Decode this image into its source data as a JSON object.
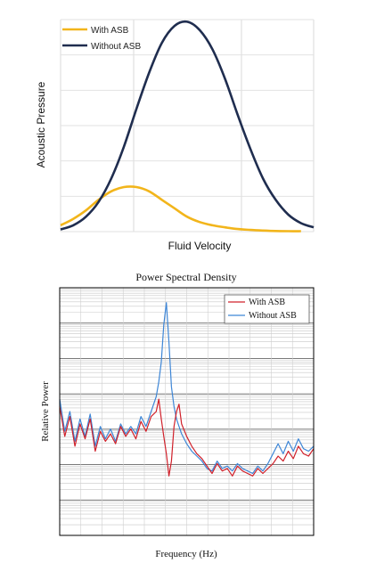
{
  "chart_data": [
    {
      "type": "line",
      "xlabel": "Fluid Velocity",
      "ylabel": "Acoustic Pressure",
      "ylim": [
        0,
        1
      ],
      "xlim": [
        0,
        1
      ],
      "grid": "vertical and horizontal",
      "legend_position": "top-left",
      "series": [
        {
          "name": "With ASB",
          "color": "#F2B51B",
          "x": [
            0.0,
            0.05,
            0.1,
            0.15,
            0.2,
            0.25,
            0.3,
            0.35,
            0.4,
            0.45,
            0.5,
            0.55,
            0.6,
            0.65,
            0.7,
            0.75,
            0.8,
            0.85,
            0.9,
            0.95
          ],
          "values": [
            0.03,
            0.06,
            0.1,
            0.15,
            0.19,
            0.21,
            0.21,
            0.19,
            0.15,
            0.11,
            0.07,
            0.045,
            0.03,
            0.02,
            0.012,
            0.008,
            0.005,
            0.003,
            0.002,
            0.002
          ]
        },
        {
          "name": "Without ASB",
          "color": "#1F2D4F",
          "x": [
            0.0,
            0.05,
            0.1,
            0.15,
            0.2,
            0.25,
            0.3,
            0.35,
            0.4,
            0.45,
            0.5,
            0.55,
            0.6,
            0.65,
            0.7,
            0.75,
            0.8,
            0.85,
            0.9,
            0.95,
            1.0
          ],
          "values": [
            0.01,
            0.03,
            0.07,
            0.14,
            0.25,
            0.4,
            0.58,
            0.75,
            0.89,
            0.97,
            0.99,
            0.95,
            0.86,
            0.72,
            0.55,
            0.39,
            0.25,
            0.15,
            0.08,
            0.04,
            0.02
          ]
        }
      ]
    },
    {
      "type": "line",
      "title": "Power Spectral Density",
      "xlabel": "Frequency (Hz)",
      "ylabel": "Relative Power",
      "xlim": [
        0,
        1
      ],
      "ylim": [
        0,
        1
      ],
      "grid": "log-style horizontal and vertical",
      "legend_position": "top-right",
      "series": [
        {
          "name": "With ASB",
          "color": "#D0202A",
          "x": [
            0.0,
            0.02,
            0.04,
            0.06,
            0.08,
            0.1,
            0.12,
            0.14,
            0.16,
            0.18,
            0.2,
            0.22,
            0.24,
            0.26,
            0.28,
            0.3,
            0.32,
            0.34,
            0.36,
            0.38,
            0.39,
            0.4,
            0.41,
            0.42,
            0.43,
            0.44,
            0.45,
            0.46,
            0.47,
            0.48,
            0.5,
            0.52,
            0.54,
            0.56,
            0.58,
            0.6,
            0.62,
            0.64,
            0.66,
            0.68,
            0.7,
            0.72,
            0.74,
            0.76,
            0.78,
            0.8,
            0.82,
            0.84,
            0.86,
            0.88,
            0.9,
            0.92,
            0.94,
            0.96,
            0.98,
            1.0
          ],
          "values": [
            0.52,
            0.4,
            0.48,
            0.36,
            0.45,
            0.39,
            0.47,
            0.34,
            0.42,
            0.38,
            0.41,
            0.37,
            0.44,
            0.4,
            0.43,
            0.39,
            0.46,
            0.42,
            0.48,
            0.5,
            0.55,
            0.47,
            0.4,
            0.33,
            0.24,
            0.3,
            0.44,
            0.5,
            0.53,
            0.45,
            0.4,
            0.36,
            0.33,
            0.31,
            0.28,
            0.25,
            0.29,
            0.26,
            0.27,
            0.24,
            0.28,
            0.26,
            0.25,
            0.24,
            0.27,
            0.25,
            0.27,
            0.29,
            0.32,
            0.3,
            0.34,
            0.31,
            0.36,
            0.33,
            0.32,
            0.35
          ]
        },
        {
          "name": "Without ASB",
          "color": "#3E86D6",
          "x": [
            0.0,
            0.02,
            0.04,
            0.06,
            0.08,
            0.1,
            0.12,
            0.14,
            0.16,
            0.18,
            0.2,
            0.22,
            0.24,
            0.26,
            0.28,
            0.3,
            0.32,
            0.34,
            0.36,
            0.38,
            0.39,
            0.4,
            0.41,
            0.42,
            0.43,
            0.44,
            0.45,
            0.46,
            0.47,
            0.48,
            0.5,
            0.52,
            0.54,
            0.56,
            0.58,
            0.6,
            0.62,
            0.64,
            0.66,
            0.68,
            0.7,
            0.72,
            0.74,
            0.76,
            0.78,
            0.8,
            0.82,
            0.84,
            0.86,
            0.88,
            0.9,
            0.92,
            0.94,
            0.96,
            0.98,
            1.0
          ],
          "values": [
            0.55,
            0.42,
            0.5,
            0.38,
            0.47,
            0.4,
            0.49,
            0.36,
            0.44,
            0.39,
            0.43,
            0.38,
            0.45,
            0.41,
            0.44,
            0.41,
            0.48,
            0.44,
            0.5,
            0.56,
            0.62,
            0.7,
            0.85,
            0.94,
            0.78,
            0.6,
            0.52,
            0.47,
            0.44,
            0.41,
            0.37,
            0.34,
            0.32,
            0.3,
            0.27,
            0.26,
            0.3,
            0.27,
            0.28,
            0.26,
            0.29,
            0.27,
            0.26,
            0.25,
            0.28,
            0.26,
            0.29,
            0.33,
            0.37,
            0.33,
            0.38,
            0.34,
            0.39,
            0.35,
            0.34,
            0.36
          ]
        }
      ]
    }
  ]
}
